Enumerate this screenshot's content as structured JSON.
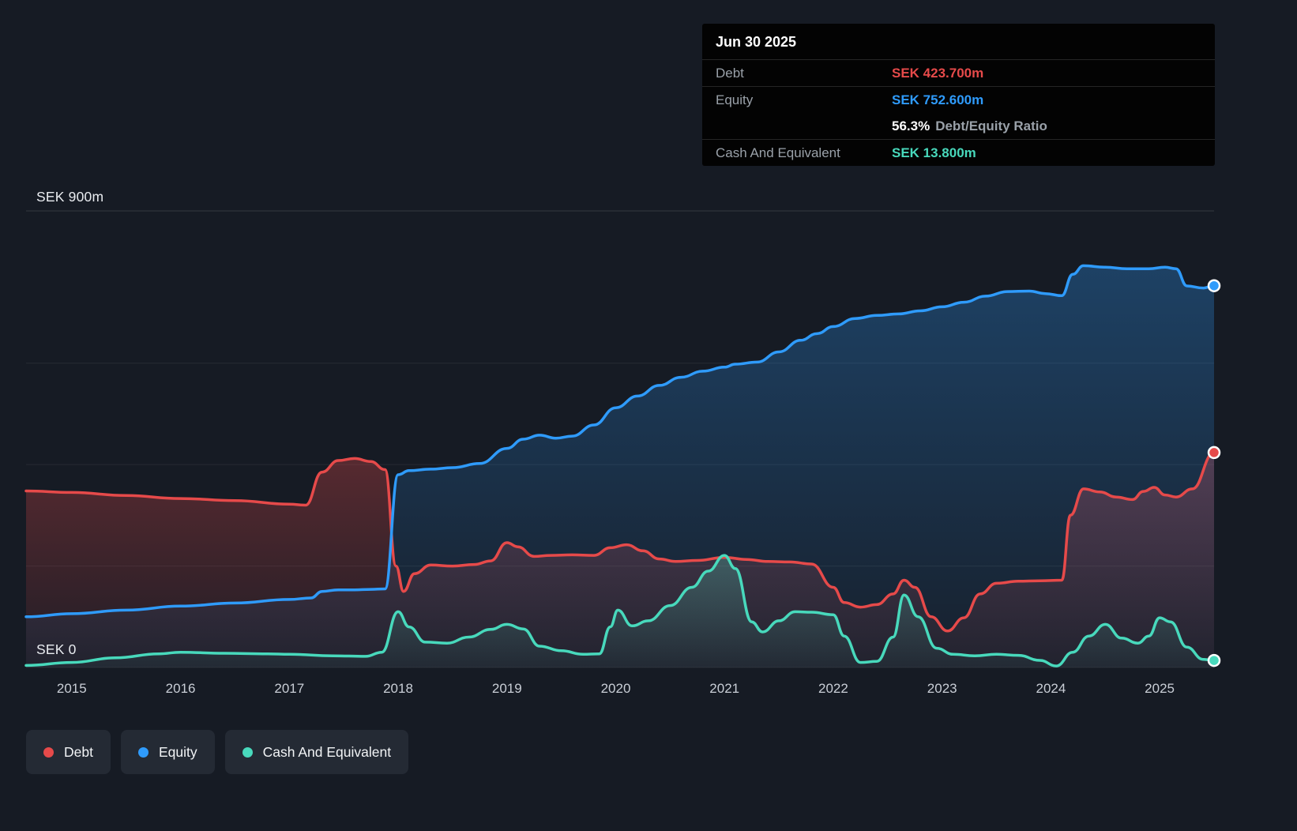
{
  "colors": {
    "background": "#161b24",
    "grid_line_major": "rgba(255,255,255,0.13)",
    "grid_line_minor": "rgba(255,255,255,0.07)",
    "axis_text": "#c9ced6"
  },
  "axis": {
    "y_top": "SEK 900m",
    "y_bottom": "SEK 0"
  },
  "tooltip": {
    "date": "Jun 30 2025",
    "debt_label": "Debt",
    "debt_value": "SEK 423.700m",
    "equity_label": "Equity",
    "equity_value": "SEK 752.600m",
    "ratio_value": "56.3%",
    "ratio_label": "Debt/Equity Ratio",
    "cash_label": "Cash And Equivalent",
    "cash_value": "SEK 13.800m"
  },
  "chart_data": {
    "type": "area",
    "x_domain": [
      2014.58,
      2025.5
    ],
    "y_domain": [
      0,
      900
    ],
    "y_unit": "SEK m",
    "grid_values": [
      900,
      600,
      400,
      200,
      0
    ],
    "x_ticks": [
      2015,
      2016,
      2017,
      2018,
      2019,
      2020,
      2021,
      2022,
      2023,
      2024,
      2025
    ],
    "legend_position": "bottom-left",
    "series": [
      {
        "name": "Debt",
        "color": "#e64a4a",
        "fill_opacity": [
          0.32,
          0.05
        ],
        "points": [
          [
            2014.58,
            348
          ],
          [
            2015,
            345
          ],
          [
            2015.5,
            339
          ],
          [
            2016,
            333
          ],
          [
            2016.5,
            329
          ],
          [
            2017,
            322
          ],
          [
            2017.15,
            320
          ],
          [
            2017.3,
            385
          ],
          [
            2017.45,
            408
          ],
          [
            2017.6,
            412
          ],
          [
            2017.75,
            406
          ],
          [
            2017.88,
            390
          ],
          [
            2017.98,
            200
          ],
          [
            2018.05,
            150
          ],
          [
            2018.15,
            185
          ],
          [
            2018.3,
            202
          ],
          [
            2018.5,
            200
          ],
          [
            2018.7,
            203
          ],
          [
            2018.85,
            210
          ],
          [
            2019,
            246
          ],
          [
            2019.1,
            238
          ],
          [
            2019.25,
            219
          ],
          [
            2019.4,
            221
          ],
          [
            2019.6,
            222
          ],
          [
            2019.8,
            221
          ],
          [
            2019.95,
            236
          ],
          [
            2020.1,
            242
          ],
          [
            2020.25,
            230
          ],
          [
            2020.4,
            214
          ],
          [
            2020.55,
            209
          ],
          [
            2020.75,
            211
          ],
          [
            2021,
            217
          ],
          [
            2021.2,
            213
          ],
          [
            2021.4,
            209
          ],
          [
            2021.6,
            208
          ],
          [
            2021.8,
            204
          ],
          [
            2022,
            158
          ],
          [
            2022.1,
            128
          ],
          [
            2022.25,
            119
          ],
          [
            2022.4,
            124
          ],
          [
            2022.55,
            145
          ],
          [
            2022.65,
            172
          ],
          [
            2022.75,
            158
          ],
          [
            2022.9,
            100
          ],
          [
            2023.05,
            72
          ],
          [
            2023.2,
            98
          ],
          [
            2023.35,
            145
          ],
          [
            2023.5,
            166
          ],
          [
            2023.7,
            170
          ],
          [
            2023.9,
            171
          ],
          [
            2024.1,
            172
          ],
          [
            2024.18,
            300
          ],
          [
            2024.3,
            352
          ],
          [
            2024.45,
            346
          ],
          [
            2024.6,
            336
          ],
          [
            2024.75,
            331
          ],
          [
            2024.85,
            347
          ],
          [
            2024.95,
            355
          ],
          [
            2025.05,
            340
          ],
          [
            2025.15,
            336
          ],
          [
            2025.3,
            352
          ],
          [
            2025.5,
            423.7
          ]
        ]
      },
      {
        "name": "Equity",
        "color": "#2f9bfb",
        "fill_opacity": [
          0.3,
          0.04
        ],
        "points": [
          [
            2014.58,
            100
          ],
          [
            2015,
            106
          ],
          [
            2015.5,
            113
          ],
          [
            2016,
            121
          ],
          [
            2016.5,
            127
          ],
          [
            2017,
            134
          ],
          [
            2017.2,
            137
          ],
          [
            2017.3,
            150
          ],
          [
            2017.45,
            153
          ],
          [
            2017.6,
            153
          ],
          [
            2017.75,
            154
          ],
          [
            2017.88,
            155
          ],
          [
            2018,
            380
          ],
          [
            2018.1,
            388
          ],
          [
            2018.3,
            391
          ],
          [
            2018.5,
            394
          ],
          [
            2018.75,
            402
          ],
          [
            2019,
            432
          ],
          [
            2019.15,
            450
          ],
          [
            2019.3,
            458
          ],
          [
            2019.45,
            452
          ],
          [
            2019.6,
            456
          ],
          [
            2019.8,
            478
          ],
          [
            2020,
            512
          ],
          [
            2020.2,
            535
          ],
          [
            2020.4,
            556
          ],
          [
            2020.6,
            572
          ],
          [
            2020.8,
            584
          ],
          [
            2021,
            592
          ],
          [
            2021.1,
            598
          ],
          [
            2021.3,
            602
          ],
          [
            2021.5,
            622
          ],
          [
            2021.7,
            645
          ],
          [
            2021.85,
            658
          ],
          [
            2022,
            672
          ],
          [
            2022.2,
            688
          ],
          [
            2022.4,
            694
          ],
          [
            2022.6,
            697
          ],
          [
            2022.8,
            703
          ],
          [
            2023,
            711
          ],
          [
            2023.2,
            720
          ],
          [
            2023.4,
            732
          ],
          [
            2023.6,
            741
          ],
          [
            2023.8,
            742
          ],
          [
            2023.95,
            737
          ],
          [
            2024.1,
            733
          ],
          [
            2024.2,
            775
          ],
          [
            2024.3,
            792
          ],
          [
            2024.5,
            789
          ],
          [
            2024.7,
            786
          ],
          [
            2024.9,
            786
          ],
          [
            2025.05,
            789
          ],
          [
            2025.15,
            786
          ],
          [
            2025.25,
            752
          ],
          [
            2025.4,
            748
          ],
          [
            2025.5,
            752.6
          ]
        ]
      },
      {
        "name": "Cash And Equivalent",
        "color": "#48d9bc",
        "fill_opacity": [
          0.26,
          0.04
        ],
        "points": [
          [
            2014.58,
            4
          ],
          [
            2015,
            10
          ],
          [
            2015.4,
            19
          ],
          [
            2015.8,
            27
          ],
          [
            2016,
            30
          ],
          [
            2016.4,
            28
          ],
          [
            2016.8,
            27
          ],
          [
            2017,
            26
          ],
          [
            2017.4,
            23
          ],
          [
            2017.7,
            22
          ],
          [
            2017.85,
            30
          ],
          [
            2018,
            110
          ],
          [
            2018.1,
            80
          ],
          [
            2018.25,
            50
          ],
          [
            2018.45,
            48
          ],
          [
            2018.65,
            60
          ],
          [
            2018.85,
            75
          ],
          [
            2019,
            85
          ],
          [
            2019.15,
            76
          ],
          [
            2019.3,
            42
          ],
          [
            2019.5,
            33
          ],
          [
            2019.7,
            26
          ],
          [
            2019.85,
            27
          ],
          [
            2019.95,
            80
          ],
          [
            2020.02,
            113
          ],
          [
            2020.15,
            82
          ],
          [
            2020.3,
            92
          ],
          [
            2020.5,
            122
          ],
          [
            2020.7,
            158
          ],
          [
            2020.85,
            190
          ],
          [
            2021,
            221
          ],
          [
            2021.1,
            195
          ],
          [
            2021.25,
            90
          ],
          [
            2021.35,
            70
          ],
          [
            2021.5,
            92
          ],
          [
            2021.65,
            110
          ],
          [
            2021.8,
            109
          ],
          [
            2022,
            104
          ],
          [
            2022.1,
            62
          ],
          [
            2022.25,
            10
          ],
          [
            2022.4,
            12
          ],
          [
            2022.55,
            60
          ],
          [
            2022.65,
            143
          ],
          [
            2022.78,
            100
          ],
          [
            2022.95,
            38
          ],
          [
            2023.1,
            26
          ],
          [
            2023.3,
            23
          ],
          [
            2023.5,
            26
          ],
          [
            2023.7,
            24
          ],
          [
            2023.9,
            14
          ],
          [
            2024.05,
            3
          ],
          [
            2024.2,
            30
          ],
          [
            2024.35,
            62
          ],
          [
            2024.5,
            85
          ],
          [
            2024.65,
            58
          ],
          [
            2024.8,
            48
          ],
          [
            2024.9,
            62
          ],
          [
            2025,
            98
          ],
          [
            2025.1,
            90
          ],
          [
            2025.25,
            40
          ],
          [
            2025.4,
            16
          ],
          [
            2025.5,
            13.8
          ]
        ]
      }
    ]
  }
}
